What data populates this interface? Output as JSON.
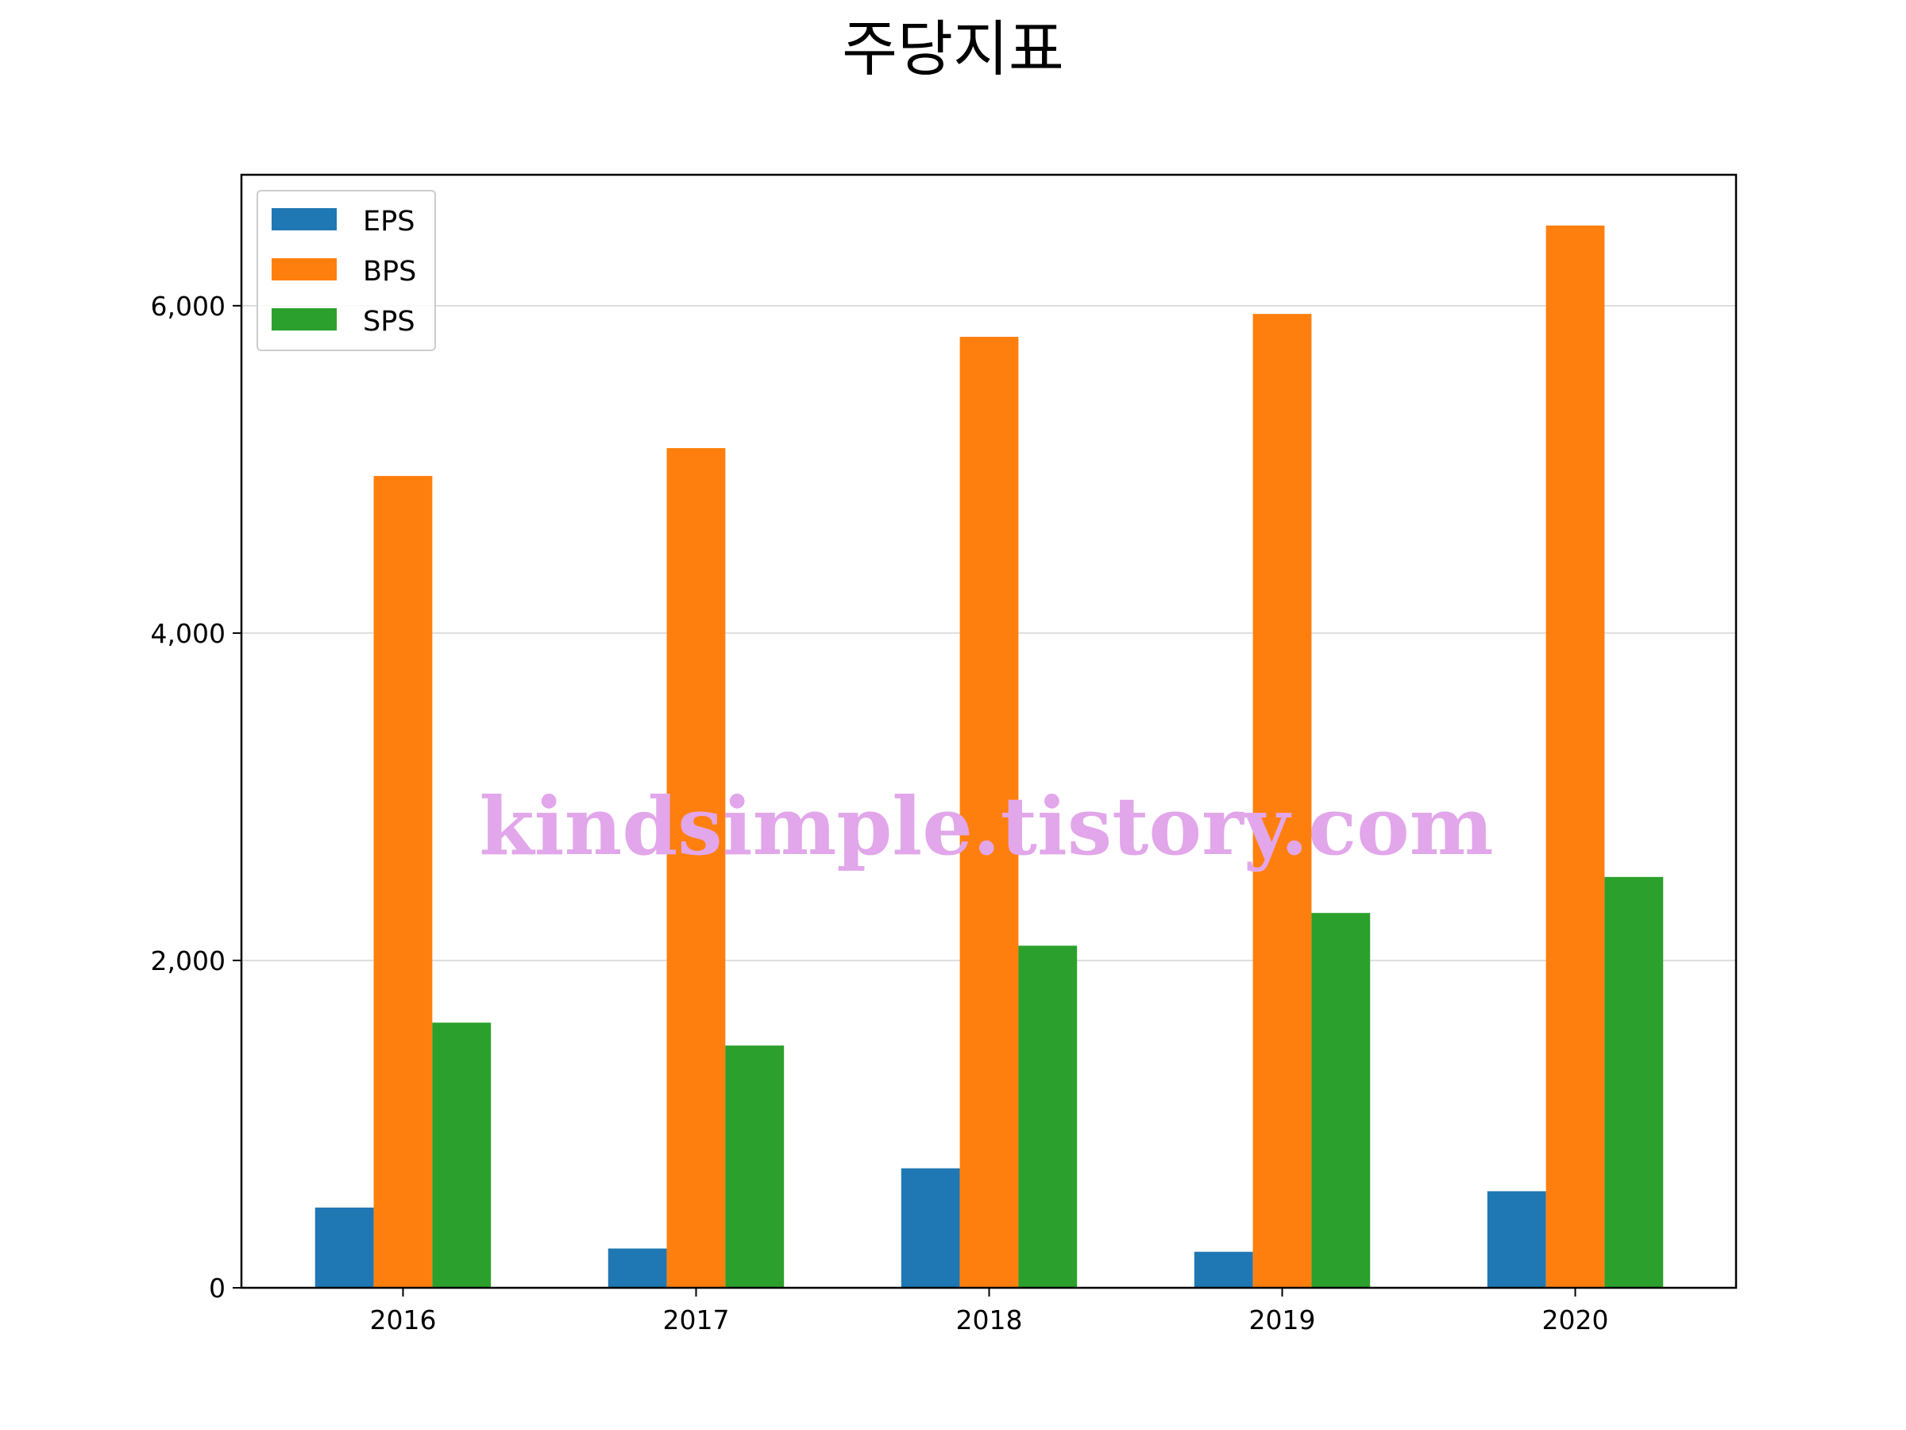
{
  "chart_data": {
    "type": "bar",
    "title": "주당지표",
    "xlabel": "",
    "ylabel": "",
    "categories": [
      "2016",
      "2017",
      "2018",
      "2019",
      "2020"
    ],
    "series": [
      {
        "name": "EPS",
        "color": "#1f77b4",
        "values": [
          490,
          240,
          730,
          220,
          590
        ]
      },
      {
        "name": "BPS",
        "color": "#ff7f0e",
        "values": [
          4960,
          5130,
          5810,
          5950,
          6490
        ]
      },
      {
        "name": "SPS",
        "color": "#2ca02c",
        "values": [
          1620,
          1480,
          2090,
          2290,
          2510
        ]
      }
    ],
    "ylim": [
      0,
      6800
    ],
    "yticks": [
      0,
      2000,
      4000,
      6000
    ],
    "ytick_labels": [
      "0",
      "2,000",
      "4,000",
      "6,000"
    ],
    "grid": "horizontal",
    "legend_position": "top-left",
    "watermark": "kindsimple.tistory.com"
  }
}
